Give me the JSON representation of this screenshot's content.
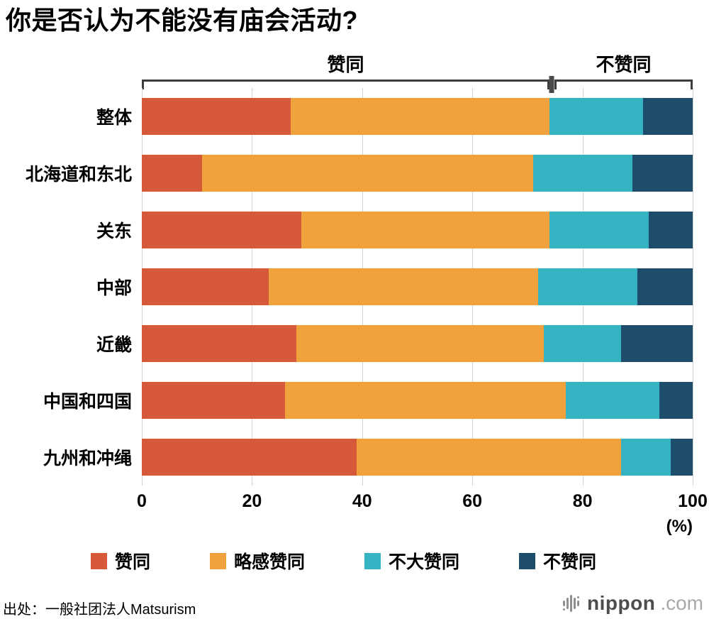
{
  "title": "你是否认为不能没有庙会活动?",
  "chart_data": {
    "type": "bar",
    "variant": "horizontal-stacked",
    "title": "你是否认为不能没有庙会活动?",
    "categories": [
      "整体",
      "北海道和东北",
      "关东",
      "中部",
      "近畿",
      "中国和四国",
      "九州和冲绳"
    ],
    "series": [
      {
        "key": "agree",
        "name": "赞同",
        "color": "#d65a39",
        "values": [
          27,
          11,
          29,
          23,
          28,
          26,
          39
        ]
      },
      {
        "key": "somewhat-agree",
        "name": "略感赞同",
        "color": "#f0a33c",
        "values": [
          47,
          60,
          45,
          49,
          45,
          51,
          48
        ]
      },
      {
        "key": "not-much-agree",
        "name": "不大赞同",
        "color": "#36b3c3",
        "values": [
          17,
          18,
          18,
          18,
          14,
          17,
          9
        ]
      },
      {
        "key": "disagree",
        "name": "不赞同",
        "color": "#1d4d6b",
        "values": [
          9,
          11,
          8,
          10,
          13,
          6,
          4
        ]
      }
    ],
    "xlim": [
      0,
      100
    ],
    "x_ticks": [
      0,
      20,
      40,
      60,
      80,
      100
    ],
    "percent_label": "(%)",
    "grid": true,
    "legend_position": "bottom",
    "brackets": [
      {
        "key": "agree",
        "label": "赞同",
        "from": 0,
        "to": 74
      },
      {
        "key": "disagree",
        "label": "不赞同",
        "from": 74.9,
        "to": 100
      }
    ]
  },
  "source": "出处：一般社团法人Matsurism",
  "logo": {
    "name": "nippon",
    "tld": ".com"
  }
}
